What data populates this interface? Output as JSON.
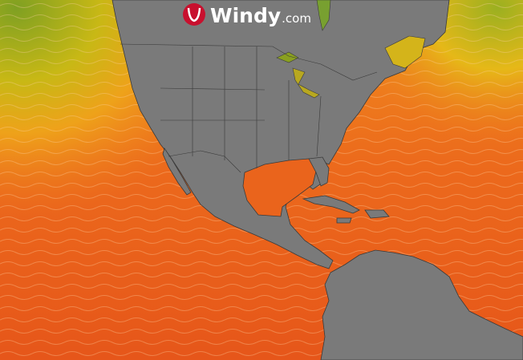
{
  "logo": {
    "name": "Windy",
    "suffix": ".com"
  }
}
